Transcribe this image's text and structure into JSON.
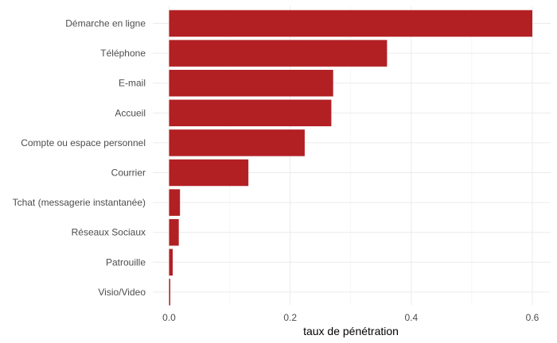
{
  "chart_data": {
    "type": "bar",
    "orientation": "horizontal",
    "categories": [
      "Démarche en ligne",
      "Téléphone",
      "E-mail",
      "Accueil",
      "Compte ou espace personnel",
      "Courrier",
      "Tchat (messagerie instantanée)",
      "Réseaux Sociaux",
      "Patrouille",
      "Visio/Video"
    ],
    "values": [
      0.6,
      0.36,
      0.271,
      0.268,
      0.224,
      0.131,
      0.018,
      0.016,
      0.006,
      0.002
    ],
    "xlabel": "taux de pénétration",
    "ylabel": "",
    "xlim": [
      0,
      0.63
    ],
    "xticks": [
      0.0,
      0.2,
      0.4,
      0.6
    ],
    "xtick_labels": [
      "0.0",
      "0.2",
      "0.4",
      "0.6"
    ],
    "grid": true,
    "bar_color": "#b22024"
  }
}
